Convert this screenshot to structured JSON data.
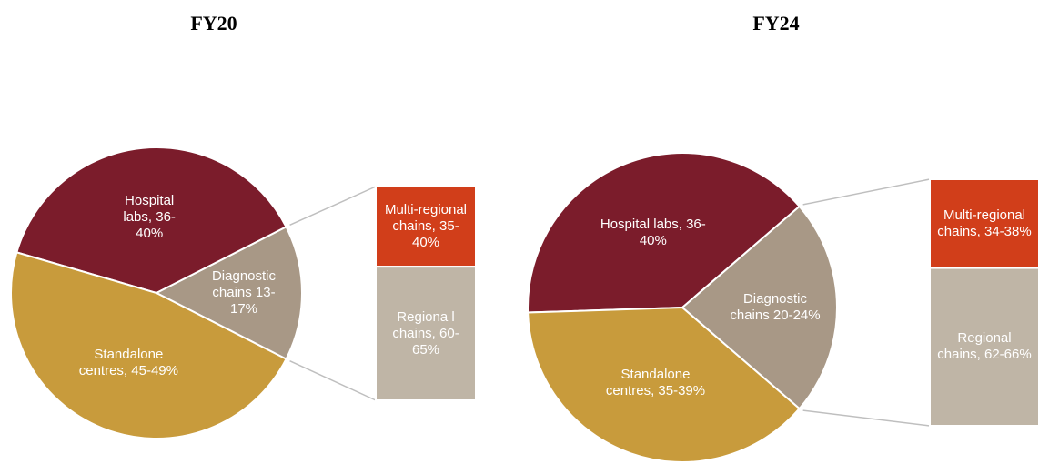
{
  "chart_data": [
    {
      "type": "pie",
      "title": "FY20",
      "values": [
        38,
        15,
        47
      ],
      "value_labels": [
        "Hospital labs, 36-40%",
        "Diagnostic chains 13-17%",
        "Standalone centres, 45-49%"
      ],
      "colors": [
        "#7b1c2b",
        "#a89886",
        "#c89b3c"
      ],
      "breakdown": {
        "values": [
          37.5,
          62.5
        ],
        "value_labels": [
          "Multi-regional chains, 35-40%",
          "Regiona l chains, 60-65%"
        ],
        "colors": [
          "#d13e1a",
          "#bfb5a6"
        ]
      }
    },
    {
      "type": "pie",
      "title": "FY24",
      "values": [
        38,
        22,
        37
      ],
      "value_labels": [
        "Hospital labs, 36-40%",
        "Diagnostic chains 20-24%",
        "Standalone centres, 35-39%"
      ],
      "colors": [
        "#7b1c2b",
        "#a89886",
        "#c89b3c"
      ],
      "breakdown": {
        "values": [
          36,
          64
        ],
        "value_labels": [
          "Multi-regional chains, 34-38%",
          "Regional chains, 62-66%"
        ],
        "colors": [
          "#d13e1a",
          "#bfb5a6"
        ]
      }
    }
  ]
}
